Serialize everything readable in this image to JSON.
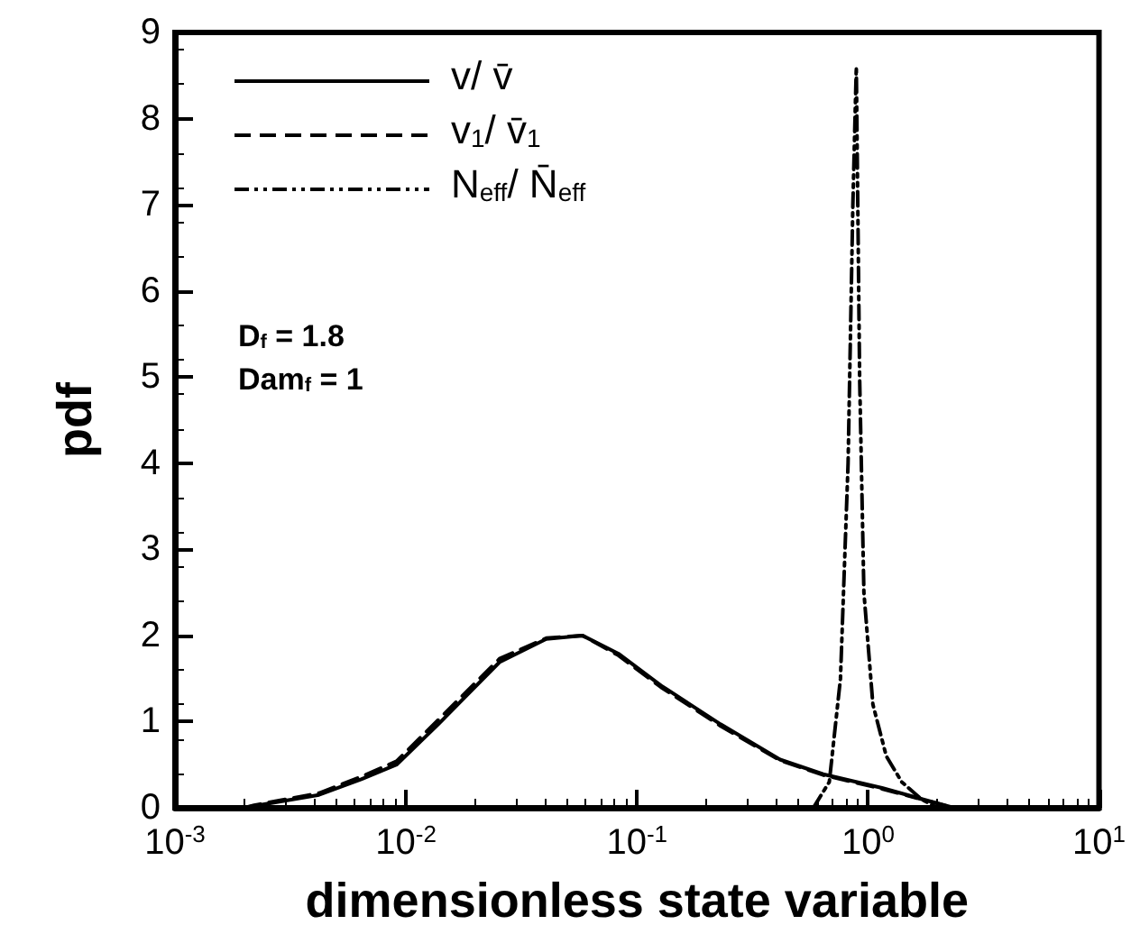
{
  "chart_data": {
    "type": "line",
    "xlabel": "dimensionless state variable",
    "ylabel": "pdf",
    "log": "x",
    "xlim": [
      0.001,
      10
    ],
    "ylim": [
      0,
      9
    ],
    "xticks": [
      {
        "value": 0.001,
        "label": "10$^{-3}$"
      },
      {
        "value": 0.01,
        "label": "10$^{-2}$"
      },
      {
        "value": 0.1,
        "label": "10$^{-1}$"
      },
      {
        "value": 1,
        "label": "10$^{0}$"
      },
      {
        "value": 10,
        "label": "10$^{1}$"
      }
    ],
    "yticks": [
      0,
      1,
      2,
      3,
      4,
      5,
      6,
      7,
      8,
      9
    ],
    "grid": false,
    "legend": "top left",
    "marker": "none",
    "annotations": [
      "D$_{f}$ = 1.8",
      "Dam$_{f}$ = 1"
    ],
    "series": [
      {
        "name": "v/ v̄",
        "color": "#000000",
        "line_style": "solid",
        "x": [
          0.002,
          0.0022,
          0.0042,
          0.0064,
          0.0091,
          0.0138,
          0.0254,
          0.0405,
          0.058,
          0.083,
          0.127,
          0.23,
          0.416,
          0.64,
          1.15,
          2.35
        ],
        "values": [
          0,
          0.02,
          0.15,
          0.33,
          0.5,
          0.97,
          1.69,
          1.96,
          2.0,
          1.79,
          1.42,
          0.97,
          0.56,
          0.39,
          0.23,
          0
        ]
      },
      {
        "name": "v$_{1}$/ v̄$_{1}$",
        "color": "#000000",
        "line_style": "dashed",
        "x": [
          0.002,
          0.0022,
          0.0042,
          0.0064,
          0.0091,
          0.0138,
          0.0254,
          0.0405,
          0.058,
          0.083,
          0.127,
          0.23,
          0.416,
          0.64,
          1.15,
          2.35
        ],
        "values": [
          0,
          0.03,
          0.17,
          0.36,
          0.54,
          1.02,
          1.73,
          1.97,
          2.0,
          1.77,
          1.4,
          0.95,
          0.55,
          0.38,
          0.22,
          0
        ]
      },
      {
        "name": "N$_{eff}$/ N̄$_{eff}$",
        "color": "#000000",
        "line_style": "dotted",
        "x": [
          0.58,
          0.68,
          0.76,
          0.82,
          0.86,
          0.89,
          0.92,
          0.96,
          1.05,
          1.2,
          1.4,
          1.7,
          2.0
        ],
        "values": [
          0,
          0.3,
          1.5,
          4,
          7,
          8.6,
          5,
          2.5,
          1.2,
          0.6,
          0.3,
          0.1,
          0
        ]
      }
    ]
  }
}
